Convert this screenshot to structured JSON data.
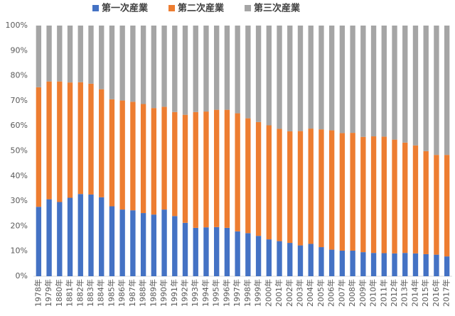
{
  "chart_data": {
    "type": "stacked_bar_100",
    "categories": [
      "1978年",
      "1979年",
      "1880年",
      "1881年",
      "1882年",
      "1883年",
      "1884年",
      "1985年",
      "1986年",
      "1987年",
      "1988年",
      "1989年",
      "1990年",
      "1991年",
      "1992年",
      "1993年",
      "1994年",
      "1995年",
      "1996年",
      "1997年",
      "1998年",
      "1999年",
      "2000年",
      "2001年",
      "2002年",
      "2003年",
      "2004年",
      "2005年",
      "2006年",
      "2007年",
      "2008年",
      "2009年",
      "2010年",
      "2011年",
      "2012年",
      "2013年",
      "2014年",
      "2015年",
      "2016年",
      "2017年"
    ],
    "series": [
      {
        "name": "第一次産業",
        "color": "#4472c4",
        "values": [
          27.7,
          30.7,
          29.6,
          31.3,
          32.8,
          32.6,
          31.5,
          27.9,
          26.6,
          26.3,
          25.2,
          24.6,
          26.6,
          24.0,
          21.3,
          19.3,
          19.5,
          19.6,
          19.3,
          17.9,
          17.2,
          16.1,
          14.7,
          14.0,
          13.3,
          12.3,
          12.9,
          11.6,
          10.6,
          10.2,
          10.2,
          9.6,
          9.3,
          9.2,
          9.1,
          9.3,
          9.1,
          8.8,
          8.6,
          7.9
        ]
      },
      {
        "name": "第二次産業",
        "color": "#ed7d31",
        "values": [
          47.7,
          47.0,
          48.1,
          46.0,
          44.6,
          44.2,
          43.1,
          42.7,
          43.5,
          43.3,
          43.5,
          42.5,
          41.0,
          41.5,
          43.1,
          46.2,
          46.2,
          46.8,
          47.1,
          47.1,
          45.8,
          45.4,
          45.5,
          44.8,
          44.5,
          45.6,
          46.0,
          47.0,
          47.6,
          46.9,
          47.0,
          46.0,
          46.5,
          46.5,
          45.4,
          44.0,
          43.1,
          41.1,
          39.8,
          40.5
        ]
      },
      {
        "name": "第三次産業",
        "color": "#a5a5a5",
        "values": [
          24.6,
          22.3,
          22.3,
          22.7,
          22.6,
          23.2,
          25.4,
          29.4,
          29.9,
          30.4,
          31.3,
          32.9,
          32.4,
          34.5,
          35.6,
          34.5,
          34.3,
          33.6,
          33.6,
          35.0,
          37.0,
          38.5,
          39.8,
          41.2,
          42.2,
          42.1,
          41.1,
          41.4,
          41.8,
          42.9,
          42.8,
          44.4,
          44.2,
          44.3,
          45.5,
          46.7,
          47.8,
          50.1,
          51.6,
          51.6
        ]
      }
    ],
    "ylim": [
      0,
      100
    ],
    "yticks": [
      {
        "value": 0,
        "label": "0%"
      },
      {
        "value": 10,
        "label": "10%"
      },
      {
        "value": 20,
        "label": "20%"
      },
      {
        "value": 30,
        "label": "30%"
      },
      {
        "value": 40,
        "label": "40%"
      },
      {
        "value": 50,
        "label": "50%"
      },
      {
        "value": 60,
        "label": "60%"
      },
      {
        "value": 70,
        "label": "70%"
      },
      {
        "value": 80,
        "label": "80%"
      },
      {
        "value": 90,
        "label": "90%"
      },
      {
        "value": 100,
        "label": "100%"
      }
    ],
    "grid": false
  }
}
